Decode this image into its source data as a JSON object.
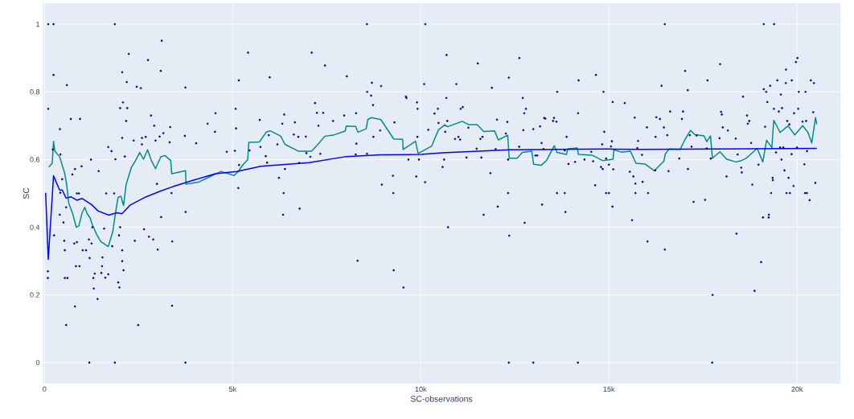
{
  "chart_data": {
    "type": "scatter",
    "xlabel": "SC-observations",
    "ylabel": "SC",
    "xlim": [
      -50,
      21150
    ],
    "ylim": [
      -0.062,
      1.062
    ],
    "xticks": [
      0,
      {
        "value": 5000,
        "label": "5k"
      },
      {
        "value": 10000,
        "label": "10k"
      },
      {
        "value": 15000,
        "label": "15k"
      },
      {
        "value": 20000,
        "label": "20k"
      }
    ],
    "yticks": [
      0,
      0.2,
      0.4,
      0.6,
      0.8,
      1
    ],
    "grid": true,
    "series": [
      {
        "color": "#00008b",
        "marker": "circle",
        "x": [
          100,
          240,
          100,
          240,
          90,
          90,
          220,
          255,
          410,
          595,
          700,
          945,
          425,
          810,
          740,
          985,
          1235,
          1440,
          470,
          420,
          860,
          915,
          505,
          405,
          575,
          790,
          860,
          525,
          540,
          835,
          930,
          540,
          610,
          575,
          810,
          1015,
          1105,
          1200,
          1180,
          1250,
          1270,
          1300,
          1310,
          1335,
          1410,
          1510,
          1530,
          1540,
          1585,
          1615,
          1695,
          1640,
          1695,
          1780,
          1800,
          1850,
          1885,
          1870,
          1190,
          1870,
          1960,
          1990,
          1980,
          2010,
          2065,
          2085,
          2185,
          2170,
          2200,
          2240,
          2065,
          2135,
          2010,
          2065,
          2100,
          2065,
          2370,
          2450,
          2560,
          2750,
          2590,
          2590,
          2690,
          2830,
          2915,
          2950,
          3060,
          3115,
          3090,
          3160,
          3340,
          3325,
          2400,
          2645,
          2775,
          2890,
          3010,
          3100,
          2990,
          3375,
          3395,
          3390,
          2490,
          3745,
          3730,
          3750,
          3745,
          4030,
          4335,
          4545,
          4530,
          4845,
          5060,
          5080,
          5090,
          5165,
          5150,
          5170,
          5410,
          5450,
          5720,
          5740,
          5985,
          5880,
          5915,
          5960,
          6190,
          6230,
          6370,
          6320,
          6355,
          6340,
          6390,
          6625,
          6655,
          6770,
          6780,
          6745,
          6945,
          6960,
          7100,
          7065,
          7190,
          7240,
          7280,
          7330,
          7405,
          7455,
          7670,
          7965,
          8035,
          8280,
          8290,
          8270,
          8320,
          8570,
          8575,
          8680,
          8700,
          8730,
          8740,
          8570,
          8920,
          8945,
          8965,
          9260,
          9270,
          9280,
          9300,
          9540,
          9605,
          9620,
          9670,
          9880,
          9900,
          9915,
          9910,
          9950,
          10090,
          10120,
          10115,
          10200,
          10365,
          10455,
          10470,
          10685,
          10680,
          10705,
          10650,
          10580,
          10620,
          10725,
          10945,
          11060,
          11115,
          10910,
          11000,
          11045,
          11215,
          11265,
          11515,
          11485,
          11610,
          11585,
          11640,
          11670,
          11850,
          11890,
          11990,
          12025,
          12045,
          12260,
          12300,
          12320,
          12320,
          12340,
          12350,
          12340,
          12615,
          12620,
          12710,
          12750,
          12795,
          12725,
          12760,
          12990,
          12990,
          13045,
          13095,
          13170,
          13210,
          13225,
          13280,
          13310,
          13265,
          13515,
          13540,
          13605,
          13625,
          13620,
          13825,
          13845,
          13825,
          13875,
          13925,
          14100,
          14180,
          14195,
          14175,
          14350,
          14530,
          14580,
          14635,
          14655,
          14790,
          14835,
          14820,
          14855,
          14875,
          14925,
          14925,
          15000,
          15000,
          15055,
          15080,
          15095,
          15115,
          15100,
          15420,
          15685,
          15615,
          15650,
          15705,
          15705,
          15555,
          15775,
          15755,
          15895,
          15880,
          16040,
          16025,
          16010,
          16240,
          16230,
          16260,
          16355,
          16400,
          16460,
          16485,
          16485,
          16550,
          16585,
          16625,
          16870,
          16940,
          16970,
          17025,
          17095,
          17100,
          17150,
          17195,
          17250,
          17330,
          17555,
          17620,
          17600,
          17705,
          17745,
          17755,
          17940,
          17955,
          17980,
          18000,
          18025,
          18125,
          18160,
          18370,
          18390,
          18420,
          18515,
          18530,
          18565,
          18670,
          18690,
          18730,
          18780,
          18810,
          18870,
          18975,
          19045,
          19095,
          19115,
          19115,
          19150,
          19180,
          19210,
          19245,
          19250,
          19285,
          19310,
          19350,
          19355,
          19390,
          19385,
          19440,
          19475,
          19515,
          19570,
          19600,
          19550,
          19585,
          19635,
          19665,
          19705,
          19700,
          19720,
          19740,
          19775,
          19795,
          19810,
          19855,
          19860,
          19905,
          19920,
          19970,
          20010,
          20030,
          20045,
          20000,
          20145,
          20195,
          20210,
          20260,
          20225,
          20240,
          20265,
          20335,
          20365,
          20430,
          20450,
          20485
        ],
        "values": [
          1.0,
          1.0,
          0.75,
          0.85,
          0.27,
          0.25,
          0.63,
          0.376,
          0.69,
          0.82,
          0.72,
          0.72,
          0.615,
          0.572,
          0.556,
          0.58,
          0.6,
          0.566,
          0.542,
          0.502,
          0.5,
          0.5,
          0.414,
          0.437,
          0.459,
          0.352,
          0.356,
          0.36,
          0.332,
          0.285,
          0.285,
          0.25,
          0.25,
          0.111,
          0.166,
          0.332,
          0.332,
          0.309,
          0.364,
          0.352,
          0.4,
          0.25,
          0.219,
          0.263,
          0.188,
          0.265,
          0.285,
          0.311,
          0.396,
          0.251,
          0.261,
          0.5,
          0.637,
          0.625,
          0.344,
          0.5,
          0.601,
          1.0,
          0,
          0,
          0.237,
          0.222,
          0.376,
          0.752,
          0.858,
          0.769,
          0.829,
          0.714,
          0.752,
          0.912,
          0.664,
          0.609,
          0.4,
          0.3,
          0.273,
          0.332,
          0.656,
          0.815,
          0.811,
          0.894,
          0.664,
          0.645,
          0.667,
          0.73,
          0.7,
          0.656,
          0.668,
          0.951,
          0.862,
          0.678,
          0.696,
          0.651,
          0.36,
          0.394,
          0.372,
          0.364,
          0.334,
          0.43,
          0.528,
          0.501,
          0.358,
          0.168,
          0.111,
          0.813,
          0.67,
          0.445,
          0,
          0.648,
          0.706,
          0.737,
          0.682,
          0.623,
          0.626,
          0.75,
          0.692,
          0.834,
          0.516,
          0.584,
          0.916,
          0.627,
          0.717,
          0.637,
          0.843,
          0.61,
          0.591,
          0.672,
          0.645,
          0.546,
          0.733,
          0.706,
          0.501,
          0.437,
          0.572,
          0.674,
          0.71,
          0.59,
          0.455,
          0.667,
          0.668,
          0.619,
          0.916,
          0.608,
          0.767,
          0.738,
          0.7,
          0.617,
          0.738,
          0.878,
          0.714,
          0.73,
          0.846,
          0.737,
          0.647,
          0.615,
          0.301,
          1.0,
          0.8,
          0.789,
          0.827,
          0.761,
          0.667,
          0.617,
          0.686,
          0.817,
          0.526,
          0.552,
          0.501,
          0.273,
          0.71,
          0.222,
          0.786,
          0.782,
          0.6,
          0.55,
          0.769,
          0.75,
          0.667,
          0.6,
          0.823,
          1.0,
          0.533,
          0.688,
          0.736,
          0.75,
          0.708,
          0.909,
          0.782,
          0.714,
          0.682,
          0.578,
          0.6,
          0.4,
          0.823,
          0.75,
          0.755,
          0.661,
          0.667,
          0.659,
          0.606,
          0.694,
          0.884,
          0.632,
          0.606,
          0.661,
          0.667,
          0.437,
          0.56,
          0.812,
          0.631,
          0.718,
          0.461,
          0.677,
          0.711,
          0.501,
          0.6,
          0.842,
          0.375,
          0,
          0.638,
          0.9,
          0.782,
          0.737,
          0.75,
          0.687,
          0.413,
          0,
          0.69,
          0.612,
          0.612,
          0.698,
          0.649,
          0.467,
          0.723,
          0.721,
          0.631,
          0.714,
          0.723,
          0.712,
          0.8,
          0.501,
          0.501,
          0.445,
          0.627,
          0.667,
          0.587,
          0.593,
          0.737,
          0.834,
          0,
          0.6,
          0.623,
          0.595,
          0.524,
          0.85,
          0.578,
          0.572,
          0.645,
          0.8,
          0.682,
          0.501,
          0.603,
          0.501,
          0.585,
          0.639,
          0.654,
          0.461,
          0.571,
          0.77,
          0.767,
          0.724,
          0.421,
          0.55,
          0.529,
          0.501,
          0.564,
          0.655,
          0.634,
          0.534,
          0.614,
          0.501,
          0.358,
          0.695,
          0.667,
          0.568,
          0.725,
          0.72,
          0.818,
          0.695,
          1.0,
          0.334,
          0.672,
          0.566,
          0.742,
          0.603,
          0.72,
          0.742,
          0.862,
          0.805,
          0.572,
          0.672,
          0.638,
          0.475,
          0.671,
          0.481,
          0.834,
          0.633,
          0.603,
          0,
          0.2,
          0.663,
          0.882,
          0.741,
          0.733,
          0.695,
          0.55,
          0.686,
          0.662,
          0.381,
          0.615,
          0.576,
          0.562,
          0.786,
          0.73,
          0.706,
          0.714,
          0.649,
          0.526,
          0.212,
          0.585,
          0.297,
          0.429,
          1.0,
          0.808,
          0.697,
          0.8,
          0.77,
          0.429,
          0.437,
          0.818,
          0.501,
          0.546,
          0.539,
          1.0,
          0.75,
          0.621,
          0.834,
          0.742,
          0.792,
          0.752,
          0.636,
          0.6,
          0.636,
          0.568,
          0.866,
          0.826,
          0.501,
          0.714,
          0.546,
          0.704,
          0.501,
          0.616,
          0.834,
          0.522,
          0.737,
          0.888,
          0.9,
          0.75,
          0.8,
          0.636,
          0.712,
          0.586,
          0.501,
          0.501,
          0.8,
          0.714,
          0.625,
          0.48,
          0.834,
          0.74,
          0.826,
          0.531
        ]
      },
      {
        "type": "line",
        "color": "#008b8b",
        "marker": "none",
        "line_style": "solid",
        "x": [
          115,
          205,
          240,
          275,
          400,
          540,
          590,
          645,
          750,
          845,
          915,
          1000,
          1070,
          1135,
          1210,
          1270,
          1390,
          1495,
          1695,
          1815,
          1885,
          1955,
          2030,
          2100,
          2170,
          2310,
          2420,
          2530,
          2630,
          2740,
          2840,
          2950,
          3090,
          3200,
          3355,
          3380,
          3750,
          3760,
          4110,
          4690,
          5040,
          5150,
          5255,
          5400,
          5430,
          5710,
          5890,
          6000,
          6280,
          6390,
          6745,
          7100,
          7280,
          7450,
          7670,
          7990,
          8020,
          8270,
          8330,
          8550,
          8590,
          8690,
          8940,
          9280,
          9520,
          9530,
          9860,
          9930,
          10290,
          10470,
          10640,
          10710,
          11100,
          11280,
          11500,
          11670,
          11960,
          12060,
          12310,
          12350,
          12560,
          12700,
          12950,
          13000,
          13200,
          13340,
          13550,
          13620,
          13870,
          13910,
          14160,
          14190,
          14550,
          14830,
          15110,
          15130,
          15330,
          15570,
          15720,
          15960,
          16210,
          16350,
          16460,
          16500,
          16600,
          16890,
          17030,
          17170,
          17280,
          17530,
          17600,
          17700,
          17750,
          17950,
          18130,
          18380,
          18520,
          18660,
          18940,
          19090,
          19190,
          19330,
          19380,
          19550,
          19760,
          19940,
          20150,
          20290,
          20390,
          20490,
          20525
        ],
        "values": [
          0.578,
          0.589,
          0.654,
          0.625,
          0.609,
          0.558,
          0.526,
          0.471,
          0.44,
          0.4,
          0.404,
          0.443,
          0.459,
          0.44,
          0.428,
          0.408,
          0.378,
          0.358,
          0.343,
          0.387,
          0.441,
          0.488,
          0.492,
          0.464,
          0.526,
          0.577,
          0.597,
          0.621,
          0.601,
          0.629,
          0.597,
          0.573,
          0.608,
          0.612,
          0.597,
          0.558,
          0.567,
          0.527,
          0.534,
          0.565,
          0.553,
          0.565,
          0.582,
          0.6,
          0.651,
          0.652,
          0.681,
          0.685,
          0.669,
          0.645,
          0.625,
          0.625,
          0.647,
          0.669,
          0.672,
          0.684,
          0.699,
          0.698,
          0.681,
          0.691,
          0.718,
          0.724,
          0.718,
          0.661,
          0.66,
          0.63,
          0.654,
          0.618,
          0.64,
          0.688,
          0.703,
          0.697,
          0.713,
          0.703,
          0.703,
          0.683,
          0.685,
          0.658,
          0.672,
          0.604,
          0.604,
          0.621,
          0.625,
          0.586,
          0.583,
          0.597,
          0.641,
          0.621,
          0.615,
          0.632,
          0.634,
          0.615,
          0.613,
          0.597,
          0.601,
          0.629,
          0.622,
          0.625,
          0.589,
          0.587,
          0.567,
          0.583,
          0.595,
          0.617,
          0.631,
          0.63,
          0.661,
          0.686,
          0.674,
          0.67,
          0.653,
          0.67,
          0.604,
          0.623,
          0.601,
          0.593,
          0.597,
          0.605,
          0.633,
          0.593,
          0.657,
          0.635,
          0.716,
          0.68,
          0.7,
          0.673,
          0.7,
          0.68,
          0.649,
          0.724,
          0.704
        ]
      },
      {
        "type": "line",
        "color": "#0000ff",
        "marker": "none",
        "line_style": "solid",
        "x": [
          30,
          100,
          240,
          400,
          470,
          575,
          700,
          860,
          1000,
          1250,
          1425,
          1710,
          1920,
          2060,
          2280,
          2700,
          3060,
          3410,
          3980,
          4550,
          5110,
          5750,
          7030,
          8020,
          8940,
          10010,
          10570,
          12350,
          14970,
          15890,
          18800,
          20525
        ],
        "values": [
          0.502,
          0.305,
          0.552,
          0.51,
          0.51,
          0.486,
          0.49,
          0.48,
          0.485,
          0.467,
          0.448,
          0.436,
          0.443,
          0.44,
          0.466,
          0.49,
          0.506,
          0.52,
          0.54,
          0.558,
          0.565,
          0.58,
          0.591,
          0.609,
          0.614,
          0.615,
          0.62,
          0.629,
          0.631,
          0.63,
          0.632,
          0.633
        ]
      }
    ]
  }
}
